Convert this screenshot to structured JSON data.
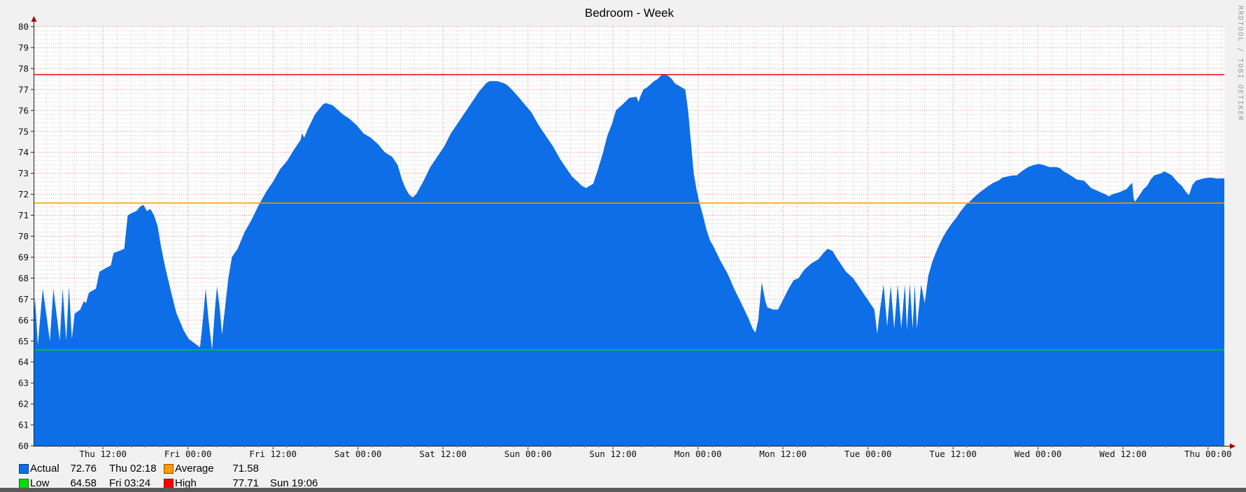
{
  "title": "Bedroom - Week",
  "watermark": "RRDTOOL / TOBI OETIKER",
  "legend": {
    "rows": [
      {
        "swatch": "#0d6ee8",
        "label": "Actual",
        "value": "72.76",
        "time": "Thu 02:18",
        "swatch2": "#ff9900",
        "label2": "Average",
        "value2": "71.58",
        "time2": ""
      },
      {
        "swatch": "#00dc00",
        "label": "Low",
        "value": "64.58",
        "time": "Fri 03:24",
        "swatch2": "#ff0000",
        "label2": "High",
        "value2": "77.71",
        "time2": "Sun 19:06"
      }
    ]
  },
  "colors": {
    "area": "#0d6ee8",
    "high_line": "#e60000",
    "average_line": "#ff9900",
    "low_line": "#00d400",
    "grid_minor": "#c9c9c9",
    "grid_major": "#e98080",
    "axis": "#222222",
    "arrow": "#aa0000",
    "plot_bg": "#ffffff",
    "page_bg": "#f1f1f1",
    "tick_label": "#111111"
  },
  "chart_data": {
    "type": "area",
    "title": "Bedroom - Week",
    "ylabel": "",
    "xlabel": "",
    "ylim": [
      60,
      80
    ],
    "y_tick_step": 1,
    "y_minor_step": 0.2,
    "x_hours_total": 168,
    "x_minor_step_hours": 2,
    "x_minor_offset_hours": 1.7,
    "grid": true,
    "legend_position": "bottom-left",
    "x_tick_hours": [
      9.7,
      21.7,
      33.7,
      45.7,
      57.7,
      69.7,
      81.7,
      93.7,
      105.7,
      117.7,
      129.7,
      141.7,
      153.7,
      165.7
    ],
    "x_tick_labels": [
      "Thu 12:00",
      "Fri 00:00",
      "Fri 12:00",
      "Sat 00:00",
      "Sat 12:00",
      "Sun 00:00",
      "Sun 12:00",
      "Mon 00:00",
      "Mon 12:00",
      "Tue 00:00",
      "Tue 12:00",
      "Wed 00:00",
      "Wed 12:00",
      "Thu 00:00"
    ],
    "hrules": [
      {
        "name": "Low",
        "value": 64.58,
        "color": "#00d400"
      },
      {
        "name": "Average",
        "value": 71.58,
        "color": "#ff9900"
      },
      {
        "name": "High",
        "value": 77.71,
        "color": "#e60000"
      }
    ],
    "stats": {
      "actual": {
        "value": 72.76,
        "time": "Thu 02:18"
      },
      "average": {
        "value": 71.58
      },
      "low": {
        "value": 64.58,
        "time": "Fri 03:24"
      },
      "high": {
        "value": 77.71,
        "time": "Sun 19:06"
      }
    },
    "series": [
      {
        "name": "Actual",
        "color": "#0d6ee8",
        "points": [
          [
            0,
            66.5
          ],
          [
            0.1,
            67.1
          ],
          [
            0.5,
            64.8
          ],
          [
            1.2,
            67.5
          ],
          [
            2.2,
            65.0
          ],
          [
            2.7,
            67.5
          ],
          [
            3.6,
            65.0
          ],
          [
            4.0,
            67.5
          ],
          [
            4.5,
            65.0
          ],
          [
            4.9,
            67.6
          ],
          [
            5.3,
            65.1
          ],
          [
            5.7,
            66.3
          ],
          [
            6.5,
            66.5
          ],
          [
            7.0,
            66.9
          ],
          [
            7.3,
            66.8
          ],
          [
            7.7,
            67.3
          ],
          [
            8.7,
            67.5
          ],
          [
            9.2,
            68.3
          ],
          [
            10.2,
            68.5
          ],
          [
            10.8,
            68.6
          ],
          [
            11.2,
            69.2
          ],
          [
            12.0,
            69.3
          ],
          [
            12.7,
            69.4
          ],
          [
            13.2,
            71.0
          ],
          [
            13.7,
            71.1
          ],
          [
            14.4,
            71.2
          ],
          [
            14.9,
            71.4
          ],
          [
            15.4,
            71.5
          ],
          [
            15.9,
            71.2
          ],
          [
            16.4,
            71.3
          ],
          [
            16.9,
            71.0
          ],
          [
            17.4,
            70.5
          ],
          [
            17.9,
            69.5
          ],
          [
            18.5,
            68.5
          ],
          [
            19.2,
            67.5
          ],
          [
            19.7,
            66.8
          ],
          [
            20.1,
            66.3
          ],
          [
            20.6,
            65.9
          ],
          [
            21.1,
            65.5
          ],
          [
            21.8,
            65.1
          ],
          [
            22.6,
            64.9
          ],
          [
            23.4,
            64.7
          ],
          [
            23.8,
            66.0
          ],
          [
            24.2,
            67.5
          ],
          [
            24.6,
            66.0
          ],
          [
            25.1,
            64.58
          ],
          [
            25.5,
            66.5
          ],
          [
            25.8,
            67.6
          ],
          [
            26.2,
            66.5
          ],
          [
            26.5,
            65.3
          ],
          [
            26.9,
            66.5
          ],
          [
            27.4,
            68.0
          ],
          [
            27.9,
            69.0
          ],
          [
            28.7,
            69.4
          ],
          [
            29.7,
            70.2
          ],
          [
            30.7,
            70.8
          ],
          [
            31.7,
            71.5
          ],
          [
            32.7,
            72.1
          ],
          [
            33.7,
            72.6
          ],
          [
            34.7,
            73.2
          ],
          [
            35.7,
            73.6
          ],
          [
            36.6,
            74.1
          ],
          [
            37.6,
            74.6
          ],
          [
            37.8,
            74.9
          ],
          [
            38.1,
            74.7
          ],
          [
            38.6,
            75.1
          ],
          [
            39.6,
            75.8
          ],
          [
            40.3,
            76.1
          ],
          [
            40.8,
            76.3
          ],
          [
            41.2,
            76.35
          ],
          [
            41.6,
            76.3
          ],
          [
            42.1,
            76.25
          ],
          [
            42.6,
            76.1
          ],
          [
            43.6,
            75.8
          ],
          [
            44.5,
            75.6
          ],
          [
            45.5,
            75.3
          ],
          [
            46.5,
            74.9
          ],
          [
            47.5,
            74.7
          ],
          [
            48.5,
            74.4
          ],
          [
            49.5,
            74.0
          ],
          [
            50.5,
            73.8
          ],
          [
            51.3,
            73.4
          ],
          [
            51.9,
            72.7
          ],
          [
            52.4,
            72.3
          ],
          [
            52.9,
            72.0
          ],
          [
            53.4,
            71.85
          ],
          [
            53.9,
            72.0
          ],
          [
            54.4,
            72.3
          ],
          [
            54.9,
            72.6
          ],
          [
            55.9,
            73.3
          ],
          [
            56.9,
            73.8
          ],
          [
            57.9,
            74.3
          ],
          [
            58.8,
            74.9
          ],
          [
            59.8,
            75.4
          ],
          [
            60.8,
            75.9
          ],
          [
            61.8,
            76.4
          ],
          [
            62.8,
            76.9
          ],
          [
            63.8,
            77.3
          ],
          [
            64.3,
            77.4
          ],
          [
            65.3,
            77.4
          ],
          [
            65.8,
            77.35
          ],
          [
            66.3,
            77.3
          ],
          [
            66.8,
            77.2
          ],
          [
            67.4,
            77.0
          ],
          [
            68.2,
            76.7
          ],
          [
            69.2,
            76.3
          ],
          [
            70.2,
            75.9
          ],
          [
            71.2,
            75.3
          ],
          [
            72.2,
            74.8
          ],
          [
            73.2,
            74.3
          ],
          [
            74.2,
            73.7
          ],
          [
            75.2,
            73.2
          ],
          [
            75.9,
            72.85
          ],
          [
            76.7,
            72.6
          ],
          [
            77.3,
            72.4
          ],
          [
            77.9,
            72.3
          ],
          [
            78.4,
            72.4
          ],
          [
            78.9,
            72.5
          ],
          [
            79.6,
            73.2
          ],
          [
            80.3,
            74.0
          ],
          [
            80.9,
            74.8
          ],
          [
            81.6,
            75.4
          ],
          [
            82.1,
            76.0
          ],
          [
            83.1,
            76.3
          ],
          [
            84.0,
            76.6
          ],
          [
            85.0,
            76.65
          ],
          [
            85.3,
            76.4
          ],
          [
            85.6,
            76.7
          ],
          [
            86.0,
            77.0
          ],
          [
            86.5,
            77.1
          ],
          [
            87.0,
            77.25
          ],
          [
            87.5,
            77.4
          ],
          [
            88.0,
            77.5
          ],
          [
            88.5,
            77.68
          ],
          [
            89.0,
            77.71
          ],
          [
            89.5,
            77.65
          ],
          [
            90.0,
            77.5
          ],
          [
            90.4,
            77.3
          ],
          [
            90.9,
            77.2
          ],
          [
            91.4,
            77.1
          ],
          [
            91.9,
            77.0
          ],
          [
            92.3,
            76.0
          ],
          [
            92.7,
            74.5
          ],
          [
            93.1,
            73.0
          ],
          [
            93.5,
            72.2
          ],
          [
            93.9,
            71.6
          ],
          [
            94.4,
            71.0
          ],
          [
            94.9,
            70.3
          ],
          [
            95.4,
            69.8
          ],
          [
            95.9,
            69.5
          ],
          [
            96.9,
            68.8
          ],
          [
            97.9,
            68.2
          ],
          [
            98.8,
            67.5
          ],
          [
            99.8,
            66.8
          ],
          [
            100.8,
            66.1
          ],
          [
            101.4,
            65.6
          ],
          [
            101.8,
            65.4
          ],
          [
            102.2,
            66.0
          ],
          [
            102.7,
            67.8
          ],
          [
            103.2,
            66.9
          ],
          [
            103.5,
            66.6
          ],
          [
            104.3,
            66.5
          ],
          [
            105.0,
            66.5
          ],
          [
            105.6,
            66.9
          ],
          [
            106.5,
            67.5
          ],
          [
            107.2,
            67.9
          ],
          [
            107.9,
            68.0
          ],
          [
            108.7,
            68.4
          ],
          [
            109.7,
            68.7
          ],
          [
            110.7,
            68.9
          ],
          [
            111.4,
            69.2
          ],
          [
            112.0,
            69.4
          ],
          [
            112.7,
            69.3
          ],
          [
            113.2,
            69.0
          ],
          [
            113.7,
            68.75
          ],
          [
            114.6,
            68.3
          ],
          [
            115.6,
            68.0
          ],
          [
            116.6,
            67.5
          ],
          [
            117.6,
            67.0
          ],
          [
            118.6,
            66.5
          ],
          [
            119.0,
            65.35
          ],
          [
            119.4,
            66.5
          ],
          [
            119.9,
            67.7
          ],
          [
            120.4,
            65.7
          ],
          [
            120.9,
            67.65
          ],
          [
            121.4,
            65.6
          ],
          [
            121.9,
            67.7
          ],
          [
            122.4,
            65.6
          ],
          [
            122.9,
            67.7
          ],
          [
            123.2,
            65.55
          ],
          [
            123.6,
            67.75
          ],
          [
            124.0,
            65.6
          ],
          [
            124.3,
            67.7
          ],
          [
            124.6,
            65.6
          ],
          [
            125.2,
            67.7
          ],
          [
            125.7,
            66.8
          ],
          [
            126.2,
            68.1
          ],
          [
            126.8,
            68.8
          ],
          [
            127.5,
            69.4
          ],
          [
            128.2,
            69.9
          ],
          [
            128.8,
            70.25
          ],
          [
            129.5,
            70.6
          ],
          [
            130.2,
            70.9
          ],
          [
            130.8,
            71.2
          ],
          [
            131.5,
            71.5
          ],
          [
            132.2,
            71.7
          ],
          [
            132.8,
            71.9
          ],
          [
            133.5,
            72.1
          ],
          [
            134.1,
            72.25
          ],
          [
            134.7,
            72.4
          ],
          [
            135.4,
            72.55
          ],
          [
            136.1,
            72.65
          ],
          [
            136.7,
            72.8
          ],
          [
            137.4,
            72.85
          ],
          [
            138.1,
            72.9
          ],
          [
            138.7,
            72.9
          ],
          [
            139.4,
            73.1
          ],
          [
            140.3,
            73.3
          ],
          [
            141.1,
            73.4
          ],
          [
            141.8,
            73.45
          ],
          [
            142.5,
            73.4
          ],
          [
            143.3,
            73.3
          ],
          [
            144.3,
            73.3
          ],
          [
            144.8,
            73.25
          ],
          [
            145.3,
            73.1
          ],
          [
            146.3,
            72.9
          ],
          [
            147.2,
            72.7
          ],
          [
            148.2,
            72.65
          ],
          [
            149.2,
            72.3
          ],
          [
            150.2,
            72.15
          ],
          [
            151.2,
            72.0
          ],
          [
            151.7,
            71.9
          ],
          [
            152.2,
            72.0
          ],
          [
            153.2,
            72.1
          ],
          [
            154.2,
            72.25
          ],
          [
            154.7,
            72.45
          ],
          [
            155.0,
            72.55
          ],
          [
            155.2,
            71.8
          ],
          [
            155.4,
            71.65
          ],
          [
            156.1,
            72.0
          ],
          [
            156.6,
            72.25
          ],
          [
            157.1,
            72.4
          ],
          [
            157.6,
            72.7
          ],
          [
            158.1,
            72.9
          ],
          [
            158.6,
            72.95
          ],
          [
            159.1,
            73.0
          ],
          [
            159.5,
            73.1
          ],
          [
            160.1,
            73.0
          ],
          [
            160.6,
            72.9
          ],
          [
            161.1,
            72.7
          ],
          [
            161.5,
            72.55
          ],
          [
            162.0,
            72.4
          ],
          [
            162.5,
            72.15
          ],
          [
            163.0,
            71.95
          ],
          [
            163.5,
            72.45
          ],
          [
            164.0,
            72.65
          ],
          [
            164.5,
            72.7
          ],
          [
            165.0,
            72.75
          ],
          [
            166.0,
            72.8
          ],
          [
            167.0,
            72.75
          ],
          [
            168.0,
            72.76
          ]
        ]
      }
    ]
  }
}
